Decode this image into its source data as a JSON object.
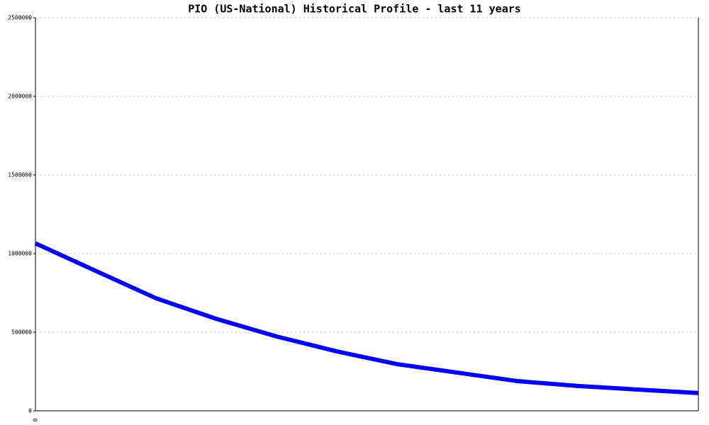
{
  "chart_data": {
    "type": "line",
    "title": "PIO (US-National) Historical Profile - last 11 years",
    "categories": [
      "0",
      null,
      null,
      null,
      null,
      null,
      null,
      null,
      null,
      null,
      null,
      null
    ],
    "series": [
      {
        "name": null,
        "color": "#0000ff",
        "values": [
          1065000,
          890000,
          716000,
          585000,
          473000,
          378000,
          297000,
          243000,
          189000,
          158000,
          135000,
          113000
        ]
      }
    ],
    "ylim": [
      0,
      2500000
    ],
    "yticks": [
      0,
      500000,
      1000000,
      1500000,
      2000000,
      2500000
    ],
    "grid": true
  }
}
